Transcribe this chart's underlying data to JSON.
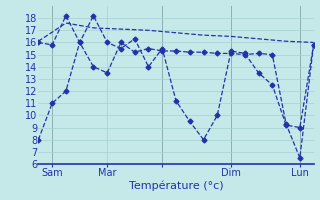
{
  "background_color": "#c5e8e8",
  "grid_color": "#a8d0d0",
  "line_color": "#2233aa",
  "xlabel": "Température (°c)",
  "ylim": [
    6,
    19
  ],
  "xlim": [
    0,
    20
  ],
  "ytick_vals": [
    6,
    7,
    8,
    9,
    10,
    11,
    12,
    13,
    14,
    15,
    16,
    17,
    18
  ],
  "xtick_positions": [
    1,
    5,
    9,
    14,
    19
  ],
  "xtick_labels": [
    "Sam",
    "Mar",
    "",
    "Dim",
    "Lun"
  ],
  "vline_positions": [
    1,
    9,
    14,
    19
  ],
  "line_zigzag_x": [
    0,
    1,
    2,
    3,
    4,
    5,
    6,
    7,
    8,
    9,
    10,
    11,
    12,
    13,
    14,
    15,
    16,
    17,
    18,
    19,
    20
  ],
  "line_zigzag_y": [
    8,
    11,
    12,
    16,
    18.2,
    16,
    15.5,
    16.3,
    14,
    15.5,
    11.2,
    9.5,
    8,
    10,
    15.3,
    15.1,
    13.5,
    12.5,
    9.2,
    9.0,
    15.8
  ],
  "line_flat_x": [
    0,
    1,
    2,
    3,
    4,
    5,
    6,
    7,
    8,
    9,
    10,
    11,
    12,
    13,
    14,
    15,
    16,
    17,
    18,
    19,
    20
  ],
  "line_flat_y": [
    16,
    15.8,
    18.2,
    16,
    14,
    13.5,
    16,
    15.2,
    15.5,
    15.3,
    15.3,
    15.2,
    15.2,
    15.1,
    15.1,
    15.0,
    15.1,
    15.0,
    9.3,
    6.5,
    15.8
  ],
  "line_upper_x": [
    0,
    2,
    4,
    6,
    8,
    10,
    12,
    14,
    16,
    18,
    20
  ],
  "line_upper_y": [
    16.1,
    17.6,
    17.2,
    17.1,
    17.0,
    16.8,
    16.6,
    16.5,
    16.3,
    16.1,
    16.0
  ]
}
